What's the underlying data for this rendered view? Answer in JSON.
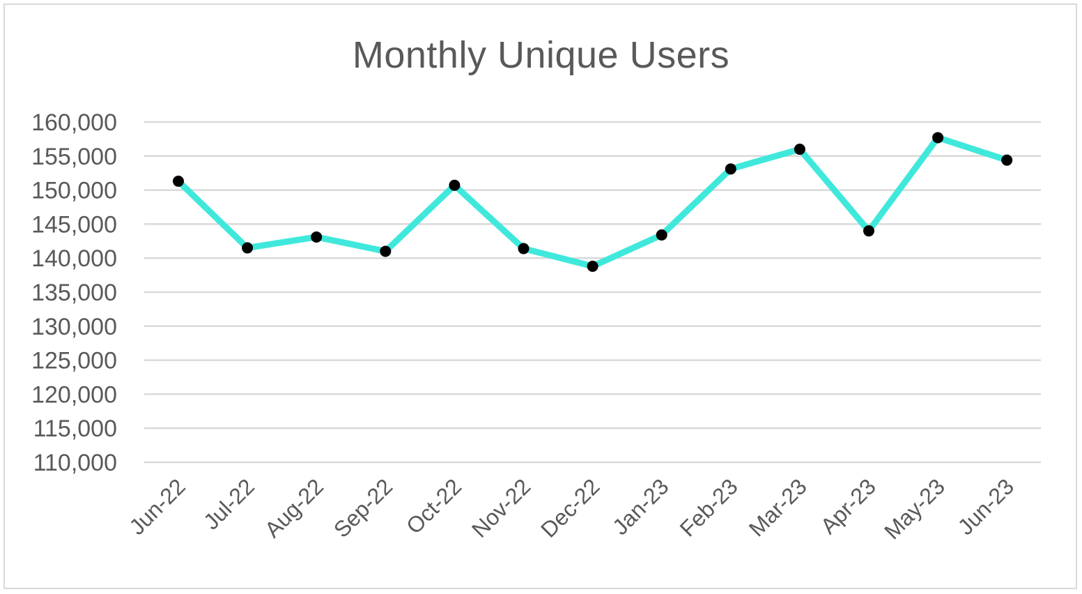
{
  "chart_data": {
    "type": "line",
    "title": "Monthly Unique Users",
    "xlabel": "",
    "ylabel": "",
    "categories": [
      "Jun-22",
      "Jul-22",
      "Aug-22",
      "Sep-22",
      "Oct-22",
      "Nov-22",
      "Dec-22",
      "Jan-23",
      "Feb-23",
      "Mar-23",
      "Apr-23",
      "May-23",
      "Jun-23"
    ],
    "series": [
      {
        "values": [
          151300,
          141500,
          143100,
          141000,
          150700,
          141400,
          138800,
          143400,
          153100,
          156000,
          144000,
          157700,
          154400
        ],
        "line_color": "#40e8dc",
        "marker_color": "#000000"
      }
    ],
    "ylim": [
      110000,
      160000
    ],
    "yticks": [
      {
        "value": 160000,
        "label": "160,000"
      },
      {
        "value": 155000,
        "label": "155,000"
      },
      {
        "value": 150000,
        "label": "150,000"
      },
      {
        "value": 145000,
        "label": "145,000"
      },
      {
        "value": 140000,
        "label": "140,000"
      },
      {
        "value": 135000,
        "label": "135,000"
      },
      {
        "value": 130000,
        "label": "130,000"
      },
      {
        "value": 125000,
        "label": "125,000"
      },
      {
        "value": 120000,
        "label": "120,000"
      },
      {
        "value": 115000,
        "label": "115,000"
      },
      {
        "value": 110000,
        "label": "110,000"
      }
    ],
    "grid": true,
    "legend": "none",
    "colors": {
      "gridline": "#d9d9d9",
      "text": "#595959",
      "border": "#d9d9d9"
    }
  }
}
